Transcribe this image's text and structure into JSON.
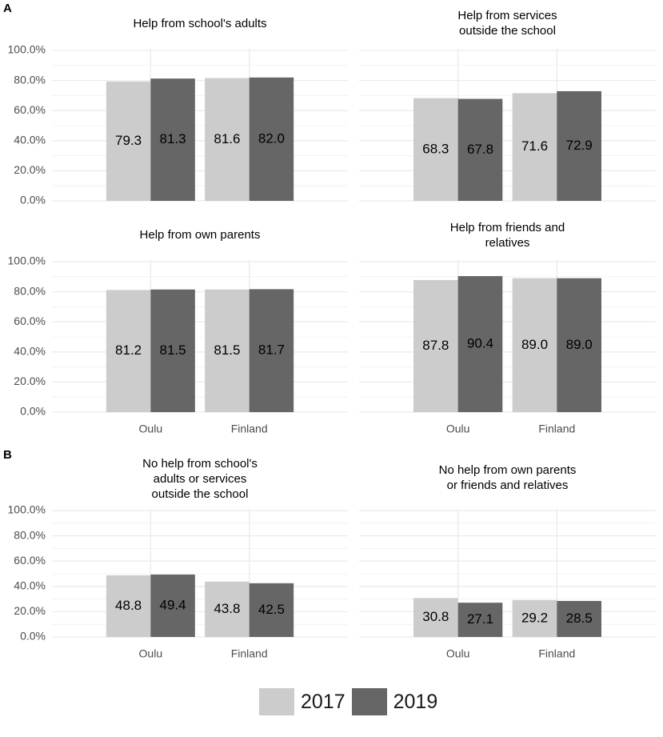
{
  "chart_data": {
    "type": "bar",
    "y_tick_labels": [
      "0.0%",
      "20.0%",
      "40.0%",
      "60.0%",
      "80.0%",
      "100.0%"
    ],
    "categories": [
      "Oulu",
      "Finland"
    ],
    "series_names": [
      "2017",
      "2019"
    ],
    "colors": {
      "2017": "#cccccc",
      "2019": "#666666",
      "grid": "#ebebeb",
      "axis_text": "#4d4d4d"
    },
    "sections": [
      {
        "label": "A",
        "panels": [
          {
            "title": [
              "Help from school's adults"
            ],
            "ylim": [
              0,
              100
            ],
            "series": [
              {
                "name": "2017",
                "values": [
                  79.3,
                  81.6
                ]
              },
              {
                "name": "2019",
                "values": [
                  81.3,
                  82.0
                ]
              }
            ],
            "labels": [
              [
                "79.3",
                "81.6"
              ],
              [
                "81.3",
                "82.0"
              ]
            ]
          },
          {
            "title": [
              "Help from services",
              "outside the school"
            ],
            "ylim": [
              0,
              100
            ],
            "series": [
              {
                "name": "2017",
                "values": [
                  68.3,
                  71.6
                ]
              },
              {
                "name": "2019",
                "values": [
                  67.8,
                  72.9
                ]
              }
            ],
            "labels": [
              [
                "68.3",
                "71.6"
              ],
              [
                "67.8",
                "72.9"
              ]
            ]
          },
          {
            "title": [
              "Help from own parents"
            ],
            "ylim": [
              0,
              100
            ],
            "series": [
              {
                "name": "2017",
                "values": [
                  81.2,
                  81.5
                ]
              },
              {
                "name": "2019",
                "values": [
                  81.5,
                  81.7
                ]
              }
            ],
            "labels": [
              [
                "81.2",
                "81.5"
              ],
              [
                "81.5",
                "81.7"
              ]
            ]
          },
          {
            "title": [
              "Help from friends and",
              "relatives"
            ],
            "ylim": [
              0,
              100
            ],
            "series": [
              {
                "name": "2017",
                "values": [
                  87.8,
                  89.0
                ]
              },
              {
                "name": "2019",
                "values": [
                  90.4,
                  89.0
                ]
              }
            ],
            "labels": [
              [
                "87.8",
                "89.0"
              ],
              [
                "90.4",
                "89.0"
              ]
            ]
          }
        ]
      },
      {
        "label": "B",
        "panels": [
          {
            "title": [
              "No help from school's",
              "adults or services",
              "outside the school"
            ],
            "ylim": [
              0,
              100
            ],
            "series": [
              {
                "name": "2017",
                "values": [
                  48.8,
                  43.8
                ]
              },
              {
                "name": "2019",
                "values": [
                  49.4,
                  42.5
                ]
              }
            ],
            "labels": [
              [
                "48.8",
                "43.8"
              ],
              [
                "49.4",
                "42.5"
              ]
            ]
          },
          {
            "title": [
              "No help from own parents",
              "or friends and relatives"
            ],
            "ylim": [
              0,
              100
            ],
            "series": [
              {
                "name": "2017",
                "values": [
                  30.8,
                  29.2
                ]
              },
              {
                "name": "2019",
                "values": [
                  27.1,
                  28.5
                ]
              }
            ],
            "labels": [
              [
                "30.8",
                "29.2"
              ],
              [
                "27.1",
                "28.5"
              ]
            ]
          }
        ]
      }
    ]
  },
  "legend": {
    "items": [
      {
        "label": "2017",
        "color": "#cccccc"
      },
      {
        "label": "2019",
        "color": "#666666"
      }
    ]
  }
}
